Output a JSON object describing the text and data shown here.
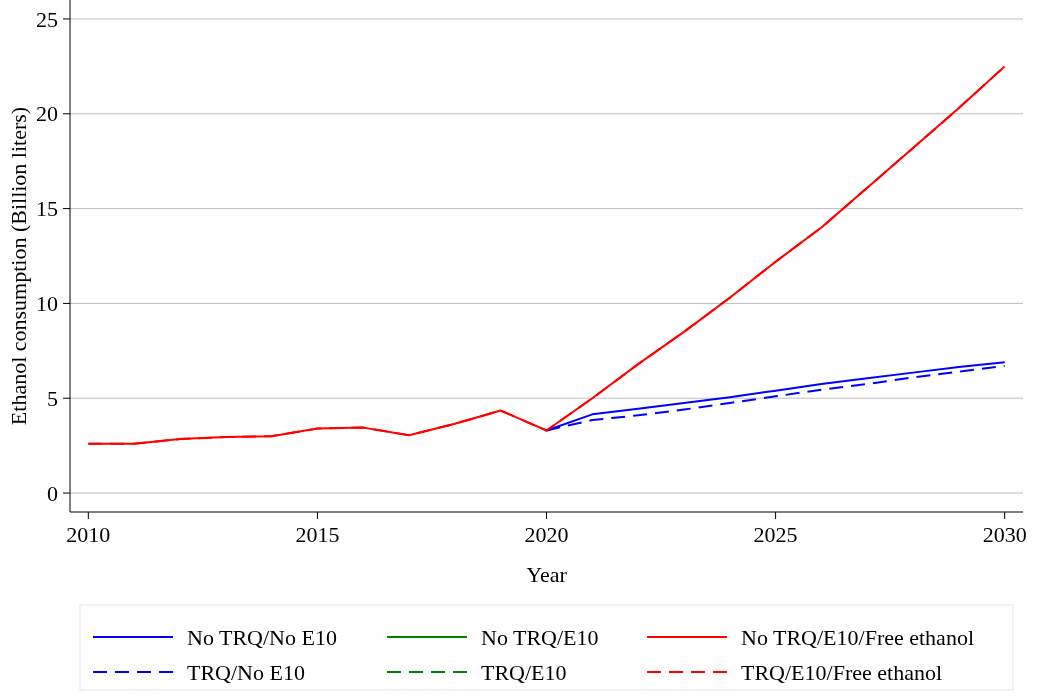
{
  "chart_data": {
    "type": "line",
    "xlabel": "Year",
    "ylabel": "Ethanol consumption (Billion liters)",
    "x": [
      2010,
      2011,
      2012,
      2013,
      2014,
      2015,
      2016,
      2017,
      2018,
      2019,
      2020,
      2021,
      2022,
      2023,
      2024,
      2025,
      2026,
      2027,
      2028,
      2029,
      2030
    ],
    "xlim": [
      2009.6,
      2030.4
    ],
    "xticks": [
      2010,
      2015,
      2020,
      2025,
      2030
    ],
    "ylim": [
      -1,
      26
    ],
    "yticks": [
      0,
      5,
      10,
      15,
      20,
      25
    ],
    "grid": "y",
    "legend": "bottom",
    "series": [
      {
        "name": "No TRQ/No E10",
        "color": "#0000ff",
        "line_style": "solid",
        "values": [
          null,
          null,
          null,
          null,
          null,
          null,
          null,
          null,
          null,
          null,
          3.3,
          4.15,
          4.45,
          4.75,
          5.05,
          5.4,
          5.75,
          6.05,
          6.35,
          6.65,
          6.9
        ]
      },
      {
        "name": "No TRQ/E10",
        "color": "#008000",
        "line_style": "solid",
        "values": [
          null,
          null,
          null,
          null,
          null,
          null,
          null,
          null,
          null,
          null,
          null,
          null,
          null,
          null,
          null,
          null,
          null,
          null,
          null,
          null,
          null
        ]
      },
      {
        "name": "No TRQ/E10/Free ethanol",
        "color": "#ff0000",
        "line_style": "solid",
        "values": [
          2.6,
          2.6,
          2.85,
          2.95,
          3.0,
          3.4,
          3.45,
          3.05,
          3.65,
          4.35,
          3.3,
          5.0,
          6.8,
          8.5,
          10.3,
          12.2,
          14.0,
          16.1,
          18.2,
          20.3,
          22.5
        ]
      },
      {
        "name": "TRQ/No E10",
        "color": "#0000ff",
        "line_style": "dashed",
        "values": [
          null,
          null,
          null,
          null,
          null,
          null,
          null,
          null,
          null,
          null,
          3.3,
          3.85,
          4.1,
          4.4,
          4.75,
          5.1,
          5.45,
          5.75,
          6.1,
          6.4,
          6.7
        ]
      },
      {
        "name": "TRQ/E10",
        "color": "#008000",
        "line_style": "dashed",
        "values": [
          null,
          null,
          null,
          null,
          null,
          null,
          null,
          null,
          null,
          null,
          null,
          null,
          null,
          null,
          null,
          null,
          null,
          null,
          null,
          null,
          null
        ]
      },
      {
        "name": "TRQ/E10/Free ethanol",
        "color": "#ff0000",
        "line_style": "dashed",
        "values": [
          2.6,
          2.6,
          2.85,
          2.95,
          3.0,
          3.4,
          3.45,
          3.05,
          3.65,
          4.35,
          3.3,
          5.0,
          6.8,
          8.5,
          10.3,
          12.2,
          14.0,
          16.1,
          18.2,
          20.3,
          22.5
        ]
      }
    ]
  }
}
